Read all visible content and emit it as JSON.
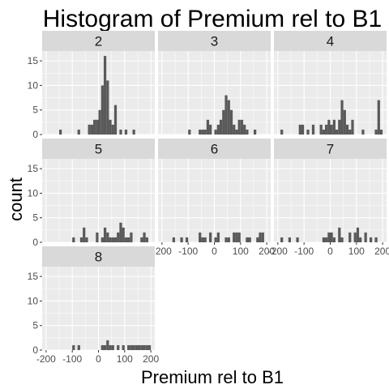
{
  "chart_data": {
    "type": "bar",
    "title": "Histogram of Premium rel to B1",
    "xlabel": "Premium rel to B1",
    "ylabel": "count",
    "xlim": [
      -215,
      215
    ],
    "ylim": [
      0,
      17
    ],
    "x_ticks": [
      -200,
      -100,
      0,
      100,
      200
    ],
    "y_ticks": [
      0,
      5,
      10,
      15
    ],
    "bin_width": 10,
    "grid": true,
    "colors": {
      "bar": "#595959",
      "panel_bg": "#ebebeb",
      "grid": "#ffffff",
      "strip_bg": "#d9d9d9"
    },
    "panels": [
      {
        "label": "2",
        "bins": [
          {
            "x": -145,
            "count": 1
          },
          {
            "x": -75,
            "count": 1
          },
          {
            "x": -35,
            "count": 2
          },
          {
            "x": -25,
            "count": 2
          },
          {
            "x": -15,
            "count": 3
          },
          {
            "x": -5,
            "count": 3
          },
          {
            "x": 5,
            "count": 5
          },
          {
            "x": 15,
            "count": 10
          },
          {
            "x": 25,
            "count": 16
          },
          {
            "x": 35,
            "count": 11
          },
          {
            "x": 45,
            "count": 3
          },
          {
            "x": 55,
            "count": 2
          },
          {
            "x": 65,
            "count": 6
          },
          {
            "x": 85,
            "count": 1
          },
          {
            "x": 105,
            "count": 1
          },
          {
            "x": 135,
            "count": 1
          }
        ]
      },
      {
        "label": "3",
        "bins": [
          {
            "x": -95,
            "count": 1
          },
          {
            "x": -55,
            "count": 1
          },
          {
            "x": -45,
            "count": 1
          },
          {
            "x": -35,
            "count": 1
          },
          {
            "x": -25,
            "count": 3
          },
          {
            "x": -15,
            "count": 2
          },
          {
            "x": 5,
            "count": 1
          },
          {
            "x": 15,
            "count": 2
          },
          {
            "x": 25,
            "count": 3
          },
          {
            "x": 35,
            "count": 5
          },
          {
            "x": 45,
            "count": 8
          },
          {
            "x": 55,
            "count": 7
          },
          {
            "x": 65,
            "count": 5
          },
          {
            "x": 75,
            "count": 2
          },
          {
            "x": 85,
            "count": 1
          },
          {
            "x": 95,
            "count": 3
          },
          {
            "x": 105,
            "count": 3
          },
          {
            "x": 115,
            "count": 2
          },
          {
            "x": 125,
            "count": 1
          },
          {
            "x": 155,
            "count": 1
          }
        ]
      },
      {
        "label": "4",
        "bins": [
          {
            "x": -185,
            "count": 1
          },
          {
            "x": -115,
            "count": 2
          },
          {
            "x": -105,
            "count": 2
          },
          {
            "x": -85,
            "count": 1
          },
          {
            "x": -65,
            "count": 2
          },
          {
            "x": -35,
            "count": 2
          },
          {
            "x": -25,
            "count": 1
          },
          {
            "x": -15,
            "count": 2
          },
          {
            "x": -5,
            "count": 3
          },
          {
            "x": 5,
            "count": 2
          },
          {
            "x": 15,
            "count": 3
          },
          {
            "x": 25,
            "count": 1
          },
          {
            "x": 35,
            "count": 3
          },
          {
            "x": 45,
            "count": 7
          },
          {
            "x": 55,
            "count": 5
          },
          {
            "x": 65,
            "count": 2
          },
          {
            "x": 75,
            "count": 1
          },
          {
            "x": 85,
            "count": 3
          },
          {
            "x": 125,
            "count": 1
          },
          {
            "x": 175,
            "count": 1
          },
          {
            "x": 185,
            "count": 7
          },
          {
            "x": 195,
            "count": 1
          }
        ]
      },
      {
        "label": "5",
        "bins": [
          {
            "x": -95,
            "count": 1
          },
          {
            "x": -65,
            "count": 1
          },
          {
            "x": -55,
            "count": 3
          },
          {
            "x": -45,
            "count": 1
          },
          {
            "x": -5,
            "count": 2
          },
          {
            "x": 15,
            "count": 1
          },
          {
            "x": 25,
            "count": 3
          },
          {
            "x": 35,
            "count": 2
          },
          {
            "x": 45,
            "count": 1
          },
          {
            "x": 55,
            "count": 1
          },
          {
            "x": 65,
            "count": 1
          },
          {
            "x": 75,
            "count": 2
          },
          {
            "x": 85,
            "count": 4
          },
          {
            "x": 95,
            "count": 3
          },
          {
            "x": 105,
            "count": 1
          },
          {
            "x": 115,
            "count": 1
          },
          {
            "x": 125,
            "count": 2
          },
          {
            "x": 165,
            "count": 1
          },
          {
            "x": 175,
            "count": 2
          },
          {
            "x": 185,
            "count": 1
          }
        ]
      },
      {
        "label": "6",
        "bins": [
          {
            "x": -155,
            "count": 1
          },
          {
            "x": -125,
            "count": 1
          },
          {
            "x": -105,
            "count": 1
          },
          {
            "x": -55,
            "count": 2
          },
          {
            "x": -45,
            "count": 1
          },
          {
            "x": -35,
            "count": 1
          },
          {
            "x": -15,
            "count": 2
          },
          {
            "x": 5,
            "count": 1
          },
          {
            "x": 15,
            "count": 2
          },
          {
            "x": 45,
            "count": 1
          },
          {
            "x": 55,
            "count": 1
          },
          {
            "x": 75,
            "count": 2
          },
          {
            "x": 85,
            "count": 2
          },
          {
            "x": 95,
            "count": 2
          },
          {
            "x": 125,
            "count": 1
          },
          {
            "x": 135,
            "count": 1
          },
          {
            "x": 165,
            "count": 1
          },
          {
            "x": 175,
            "count": 2
          },
          {
            "x": 185,
            "count": 2
          }
        ]
      },
      {
        "label": "7",
        "bins": [
          {
            "x": -185,
            "count": 1
          },
          {
            "x": -155,
            "count": 1
          },
          {
            "x": -125,
            "count": 1
          },
          {
            "x": -25,
            "count": 1
          },
          {
            "x": -15,
            "count": 1
          },
          {
            "x": -5,
            "count": 2
          },
          {
            "x": 5,
            "count": 2
          },
          {
            "x": 15,
            "count": 1
          },
          {
            "x": 35,
            "count": 3
          },
          {
            "x": 45,
            "count": 1
          },
          {
            "x": 75,
            "count": 2
          },
          {
            "x": 95,
            "count": 2
          },
          {
            "x": 105,
            "count": 3
          },
          {
            "x": 115,
            "count": 1
          },
          {
            "x": 135,
            "count": 2
          },
          {
            "x": 155,
            "count": 1
          },
          {
            "x": 175,
            "count": 1
          }
        ]
      },
      {
        "label": "8",
        "bins": [
          {
            "x": -95,
            "count": 1
          },
          {
            "x": -75,
            "count": 1
          },
          {
            "x": 15,
            "count": 1
          },
          {
            "x": 25,
            "count": 1
          },
          {
            "x": 35,
            "count": 2
          },
          {
            "x": 45,
            "count": 1
          },
          {
            "x": 55,
            "count": 1
          },
          {
            "x": 75,
            "count": 1
          },
          {
            "x": 95,
            "count": 1
          },
          {
            "x": 115,
            "count": 1
          },
          {
            "x": 125,
            "count": 1
          },
          {
            "x": 135,
            "count": 1
          },
          {
            "x": 145,
            "count": 1
          },
          {
            "x": 155,
            "count": 1
          },
          {
            "x": 165,
            "count": 1
          },
          {
            "x": 175,
            "count": 1
          },
          {
            "x": 185,
            "count": 1
          },
          {
            "x": 195,
            "count": 1
          }
        ]
      }
    ]
  }
}
